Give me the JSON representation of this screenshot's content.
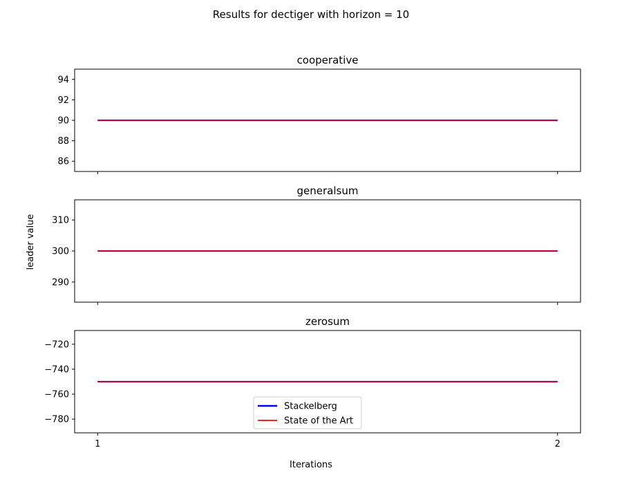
{
  "figure": {
    "suptitle": "Results for dectiger with horizon = 10",
    "xlabel": "Iterations",
    "ylabel": "leader value"
  },
  "colors": {
    "stackelberg": "#0000ff",
    "state_of_the_art": "#ff0000",
    "axes": "#000000",
    "background": "#ffffff"
  },
  "chart_data": [
    {
      "type": "line",
      "title": "cooperative",
      "x": [
        1,
        2
      ],
      "ylim": [
        85,
        95
      ],
      "yticks": [
        86,
        88,
        90,
        92,
        94
      ],
      "series": [
        {
          "name": "Stackelberg",
          "values": [
            90,
            90
          ]
        },
        {
          "name": "State of the Art",
          "values": [
            90,
            90
          ]
        }
      ],
      "grid": false
    },
    {
      "type": "line",
      "title": "generalsum",
      "x": [
        1,
        2
      ],
      "ylim": [
        283.5,
        316.5
      ],
      "yticks": [
        290,
        300,
        310
      ],
      "series": [
        {
          "name": "Stackelberg",
          "values": [
            300,
            300
          ]
        },
        {
          "name": "State of the Art",
          "values": [
            300,
            300
          ]
        }
      ],
      "grid": false
    },
    {
      "type": "line",
      "title": "zerosum",
      "x": [
        1,
        2
      ],
      "xticks": [
        1,
        2
      ],
      "ylim": [
        -791,
        -709
      ],
      "yticks": [
        -720,
        -740,
        -760,
        -780
      ],
      "series": [
        {
          "name": "Stackelberg",
          "values": [
            -750,
            -750
          ]
        },
        {
          "name": "State of the Art",
          "values": [
            -750,
            -750
          ]
        }
      ],
      "legend": {
        "placement": "lower-center",
        "entries": [
          "Stackelberg",
          "State of the Art"
        ]
      },
      "grid": false
    }
  ]
}
